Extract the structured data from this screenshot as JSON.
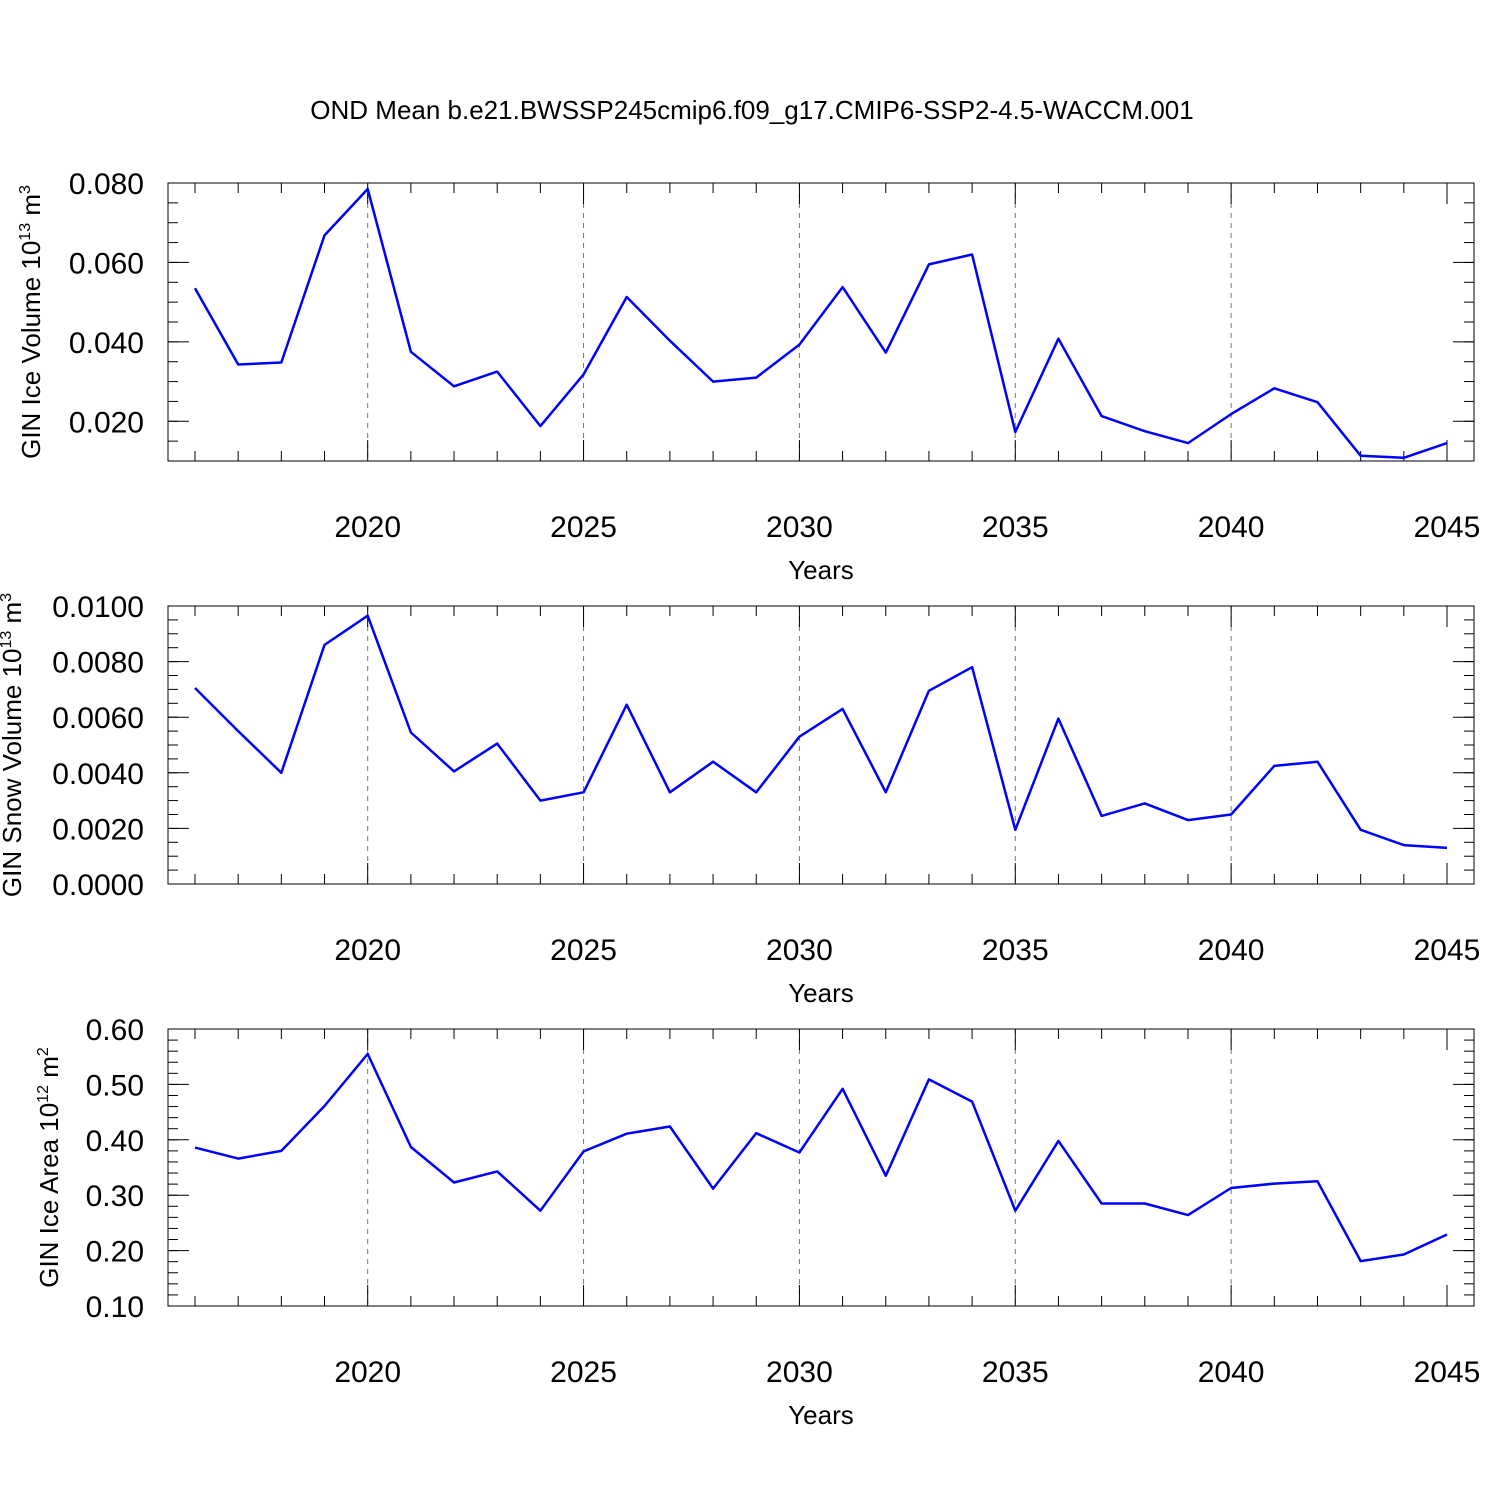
{
  "title": "OND Mean b.e21.BWSSP245cmip6.f09_g17.CMIP6-SSP2-4.5-WACCM.001",
  "series_color": "#0000ff",
  "chart_data": [
    {
      "type": "line",
      "ylabel": "GIN Ice Volume",
      "yunit_base": "10",
      "yunit_exp": "13",
      "yunit_name": "m",
      "yunit_pow": "3",
      "xlabel": "Years",
      "xlim": [
        2016,
        2045
      ],
      "ylim": [
        0.01,
        0.08
      ],
      "yticks": [
        0.02,
        0.04,
        0.06,
        0.08
      ],
      "ytick_labels": [
        "0.020",
        "0.040",
        "0.060",
        "0.080"
      ],
      "yminor_step": 0.005,
      "xticks": [
        2020,
        2025,
        2030,
        2035,
        2040,
        2045
      ],
      "xtick_labels": [
        "2020",
        "2025",
        "2030",
        "2035",
        "2040",
        "2045"
      ],
      "grid_x": [
        2020,
        2025,
        2030,
        2035,
        2040
      ],
      "x": [
        2016,
        2017,
        2018,
        2019,
        2020,
        2021,
        2022,
        2023,
        2024,
        2025,
        2026,
        2027,
        2028,
        2029,
        2030,
        2031,
        2032,
        2033,
        2034,
        2035,
        2036,
        2037,
        2038,
        2039,
        2040,
        2041,
        2042,
        2043,
        2044,
        2045
      ],
      "values": [
        0.0535,
        0.0343,
        0.0348,
        0.0668,
        0.0785,
        0.0375,
        0.0288,
        0.0325,
        0.0188,
        0.0318,
        0.0513,
        0.0403,
        0.03,
        0.031,
        0.0393,
        0.0538,
        0.0373,
        0.0595,
        0.062,
        0.0173,
        0.0408,
        0.0213,
        0.0175,
        0.0145,
        0.0218,
        0.0283,
        0.0248,
        0.0113,
        0.0108,
        0.0145
      ]
    },
    {
      "type": "line",
      "ylabel": "GIN Snow Volume",
      "yunit_base": "10",
      "yunit_exp": "13",
      "yunit_name": "m",
      "yunit_pow": "3",
      "xlabel": "Years",
      "xlim": [
        2016,
        2045
      ],
      "ylim": [
        0.0,
        0.01
      ],
      "yticks": [
        0.0,
        0.002,
        0.004,
        0.006,
        0.008,
        0.01
      ],
      "ytick_labels": [
        "0.0000",
        "0.0020",
        "0.0040",
        "0.0060",
        "0.0080",
        "0.0100"
      ],
      "yminor_step": 0.0005,
      "xticks": [
        2020,
        2025,
        2030,
        2035,
        2040,
        2045
      ],
      "xtick_labels": [
        "2020",
        "2025",
        "2030",
        "2035",
        "2040",
        "2045"
      ],
      "grid_x": [
        2020,
        2025,
        2030,
        2035,
        2040
      ],
      "x": [
        2016,
        2017,
        2018,
        2019,
        2020,
        2021,
        2022,
        2023,
        2024,
        2025,
        2026,
        2027,
        2028,
        2029,
        2030,
        2031,
        2032,
        2033,
        2034,
        2035,
        2036,
        2037,
        2038,
        2039,
        2040,
        2041,
        2042,
        2043,
        2044,
        2045
      ],
      "values": [
        0.00705,
        0.0055,
        0.004,
        0.0086,
        0.00965,
        0.00545,
        0.00405,
        0.00505,
        0.003,
        0.0033,
        0.00645,
        0.0033,
        0.0044,
        0.0033,
        0.0053,
        0.0063,
        0.0033,
        0.00695,
        0.0078,
        0.00195,
        0.00595,
        0.00245,
        0.0029,
        0.0023,
        0.0025,
        0.00425,
        0.0044,
        0.00195,
        0.0014,
        0.0013
      ]
    },
    {
      "type": "line",
      "ylabel": "GIN Ice Area",
      "yunit_base": "10",
      "yunit_exp": "12",
      "yunit_name": "m",
      "yunit_pow": "2",
      "xlabel": "Years",
      "xlim": [
        2016,
        2045
      ],
      "ylim": [
        0.1,
        0.6
      ],
      "yticks": [
        0.1,
        0.2,
        0.3,
        0.4,
        0.5,
        0.6
      ],
      "ytick_labels": [
        "0.10",
        "0.20",
        "0.30",
        "0.40",
        "0.50",
        "0.60"
      ],
      "yminor_step": 0.02,
      "xticks": [
        2020,
        2025,
        2030,
        2035,
        2040,
        2045
      ],
      "xtick_labels": [
        "2020",
        "2025",
        "2030",
        "2035",
        "2040",
        "2045"
      ],
      "grid_x": [
        2020,
        2025,
        2030,
        2035,
        2040
      ],
      "x": [
        2016,
        2017,
        2018,
        2019,
        2020,
        2021,
        2022,
        2023,
        2024,
        2025,
        2026,
        2027,
        2028,
        2029,
        2030,
        2031,
        2032,
        2033,
        2034,
        2035,
        2036,
        2037,
        2038,
        2039,
        2040,
        2041,
        2042,
        2043,
        2044,
        2045
      ],
      "values": [
        0.386,
        0.366,
        0.38,
        0.461,
        0.555,
        0.387,
        0.323,
        0.343,
        0.272,
        0.379,
        0.411,
        0.424,
        0.312,
        0.412,
        0.377,
        0.492,
        0.335,
        0.509,
        0.469,
        0.272,
        0.398,
        0.285,
        0.285,
        0.264,
        0.313,
        0.321,
        0.325,
        0.181,
        0.193,
        0.229
      ]
    }
  ]
}
